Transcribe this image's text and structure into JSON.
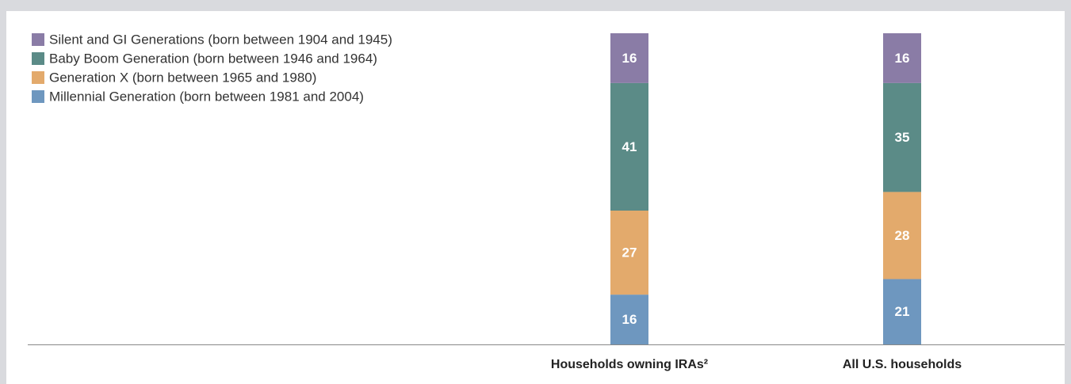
{
  "chart_data": {
    "type": "stacked_bar",
    "categories": [
      "Households owning IRAs²",
      "All U.S. households"
    ],
    "series": [
      {
        "name": "Silent and GI Generations (born between 1904 and 1945)",
        "color": "#8a7ca6",
        "values": [
          16,
          16
        ]
      },
      {
        "name": "Baby Boom Generation (born between 1946 and 1964)",
        "color": "#5b8b87",
        "values": [
          41,
          35
        ]
      },
      {
        "name": "Generation X (born between 1965 and 1980)",
        "color": "#e3aa6c",
        "values": [
          27,
          28
        ]
      },
      {
        "name": "Millennial Generation (born between 1981 and 2004)",
        "color": "#6e97bf",
        "values": [
          16,
          21
        ]
      }
    ],
    "ylim": [
      0,
      100
    ]
  }
}
